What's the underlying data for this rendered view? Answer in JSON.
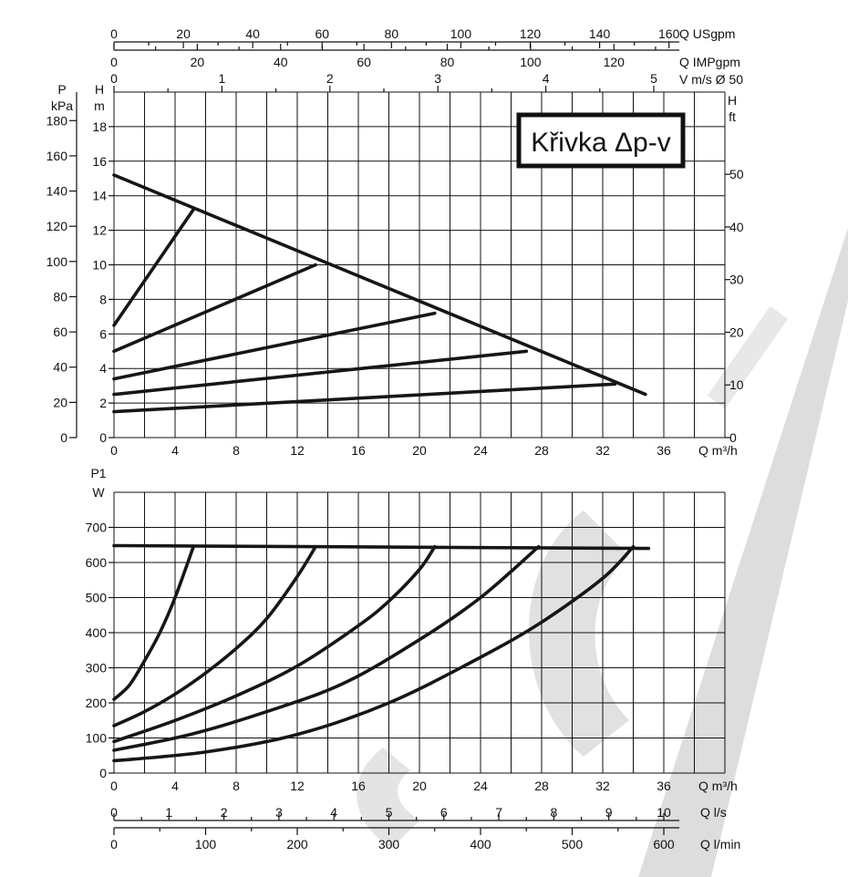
{
  "chart_data": [
    {
      "type": "line",
      "title": "Křivka Δp-v",
      "xlabel": "Q m³/h",
      "xlim": [
        0,
        40
      ],
      "x_ticks": [
        "0",
        "4",
        "8",
        "12",
        "16",
        "20",
        "24",
        "28",
        "32",
        "36"
      ],
      "ylabel_left_outer": "P kPa",
      "ylabel_left_outer_lines": [
        "P",
        "kPa"
      ],
      "y_outer_ticks": [
        "0",
        "20",
        "40",
        "60",
        "80",
        "100",
        "120",
        "140",
        "160",
        "180"
      ],
      "ylabel_left_inner": "H m",
      "ylabel_left_inner_lines": [
        "H",
        "m"
      ],
      "ylim": [
        0,
        20
      ],
      "y_ticks": [
        "0",
        "2",
        "4",
        "6",
        "8",
        "10",
        "12",
        "14",
        "16",
        "18"
      ],
      "ylabel_right": "H ft",
      "ylabel_right_lines": [
        "H",
        "ft"
      ],
      "y_right_ticks": [
        "0",
        "10",
        "20",
        "30",
        "40",
        "50"
      ],
      "top_axes": [
        {
          "label": "Q USgpm",
          "ticks": [
            "0",
            "20",
            "40",
            "60",
            "80",
            "100",
            "120",
            "140",
            "160"
          ]
        },
        {
          "label": "Q IMPgpm",
          "ticks": [
            "0",
            "20",
            "40",
            "60",
            "80",
            "100",
            "120"
          ]
        },
        {
          "label": "V m/s Ø 50",
          "ticks": [
            "0",
            "1",
            "2",
            "3",
            "4",
            "5"
          ]
        }
      ],
      "series": [
        {
          "x": [
            0,
            34.8
          ],
          "y": [
            15.2,
            2.5
          ]
        },
        {
          "x": [
            0,
            5.2
          ],
          "y": [
            6.5,
            13.2
          ]
        },
        {
          "x": [
            0,
            13.2
          ],
          "y": [
            5.0,
            10.0
          ]
        },
        {
          "x": [
            0,
            21.0
          ],
          "y": [
            3.4,
            7.2
          ]
        },
        {
          "x": [
            0,
            27.0
          ],
          "y": [
            2.5,
            5.0
          ]
        },
        {
          "x": [
            0,
            32.8
          ],
          "y": [
            1.5,
            3.1
          ]
        }
      ]
    },
    {
      "type": "line",
      "ylabel": "P1 W",
      "ylabel_lines": [
        "P1",
        "W"
      ],
      "ylim": [
        0,
        800
      ],
      "y_ticks": [
        "0",
        "100",
        "200",
        "300",
        "400",
        "500",
        "600",
        "700"
      ],
      "xlabel": "Q m³/h",
      "xlim": [
        0,
        40
      ],
      "x_ticks": [
        "0",
        "4",
        "8",
        "12",
        "16",
        "20",
        "24",
        "28",
        "32",
        "36"
      ],
      "bottom_axes": [
        {
          "label": "Q l/s",
          "ticks": [
            "0",
            "1",
            "2",
            "3",
            "4",
            "5",
            "6",
            "7",
            "8",
            "9",
            "10"
          ]
        },
        {
          "label": "Q l/min",
          "ticks": [
            "0",
            "100",
            "200",
            "300",
            "400",
            "500",
            "600"
          ]
        }
      ],
      "series": [
        {
          "x": [
            0,
            35.0
          ],
          "y": [
            648,
            640
          ]
        },
        {
          "x": [
            0,
            1,
            2,
            3,
            4,
            5.2
          ],
          "y": [
            210,
            250,
            320,
            400,
            500,
            645
          ]
        },
        {
          "x": [
            0,
            2,
            4,
            6,
            8,
            10,
            12,
            13.2
          ],
          "y": [
            135,
            175,
            225,
            285,
            355,
            440,
            560,
            645
          ]
        },
        {
          "x": [
            0,
            4,
            8,
            12,
            16,
            18,
            20,
            21.0
          ],
          "y": [
            90,
            150,
            220,
            305,
            420,
            490,
            580,
            645
          ]
        },
        {
          "x": [
            0,
            5,
            10,
            15,
            20,
            24,
            27.8
          ],
          "y": [
            65,
            110,
            175,
            255,
            380,
            500,
            645
          ]
        },
        {
          "x": [
            0,
            6,
            12,
            18,
            24,
            28,
            32,
            34.0
          ],
          "y": [
            35,
            60,
            110,
            200,
            330,
            430,
            555,
            645
          ]
        }
      ]
    }
  ]
}
